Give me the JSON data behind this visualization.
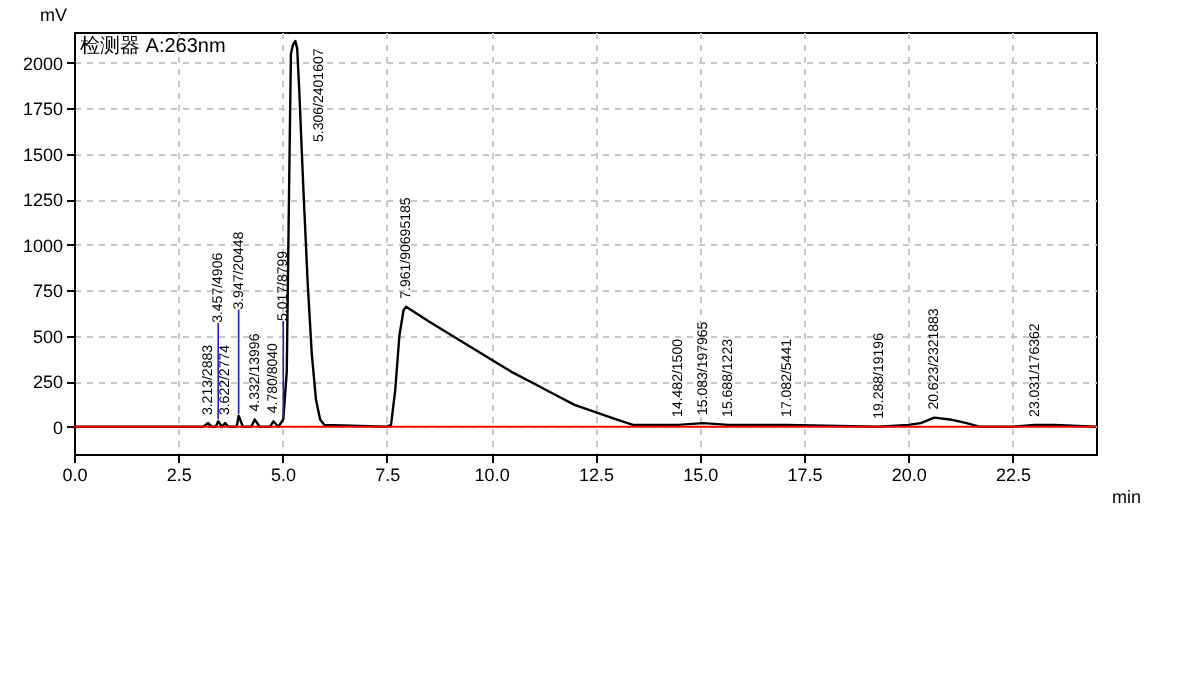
{
  "chart_data": {
    "type": "line",
    "title": "检测器 A:263nm",
    "xlabel": "min",
    "ylabel": "mV",
    "x": [
      0,
      2.9,
      3.1,
      3.213,
      3.3,
      3.4,
      3.457,
      3.55,
      3.622,
      3.7,
      3.9,
      3.947,
      4.05,
      4.25,
      4.332,
      4.45,
      4.7,
      4.78,
      4.9,
      5.017,
      5.1,
      5.15,
      5.2,
      5.25,
      5.306,
      5.35,
      5.4,
      5.5,
      5.6,
      5.7,
      5.8,
      5.9,
      6.0,
      7.5,
      7.6,
      7.7,
      7.8,
      7.9,
      7.961,
      8.5,
      9.0,
      9.5,
      10.0,
      10.5,
      11.0,
      11.5,
      12.0,
      12.5,
      13.0,
      13.4,
      14.0,
      14.482,
      15.083,
      15.688,
      16.2,
      17.082,
      19.288,
      20.0,
      20.3,
      20.623,
      21.0,
      21.4,
      21.7,
      22.5,
      23.031,
      23.5,
      24.5
    ],
    "series": [
      {
        "color": "#000000",
        "values": [
          0,
          0,
          0,
          20,
          0,
          0,
          30,
          0,
          20,
          0,
          0,
          60,
          0,
          0,
          40,
          0,
          0,
          30,
          0,
          40,
          300,
          1200,
          2050,
          2100,
          2120,
          2080,
          1850,
          1300,
          800,
          400,
          150,
          40,
          10,
          0,
          10,
          200,
          500,
          640,
          660,
          580,
          510,
          440,
          370,
          300,
          240,
          180,
          120,
          80,
          40,
          10,
          10,
          10,
          20,
          10,
          10,
          10,
          0,
          10,
          20,
          50,
          40,
          20,
          0,
          0,
          10,
          10,
          0
        ]
      }
    ],
    "annotations": [
      {
        "text": "3.213/2883",
        "x": 3.213,
        "y": 20
      },
      {
        "text": "3.457/4906",
        "x": 3.457,
        "y": 30
      },
      {
        "text": "3.622/2774",
        "x": 3.622,
        "y": 20
      },
      {
        "text": "3.947/20448",
        "x": 3.947,
        "y": 60
      },
      {
        "text": "4.332/13996",
        "x": 4.332,
        "y": 40
      },
      {
        "text": "4.780/8040",
        "x": 4.78,
        "y": 30
      },
      {
        "text": "5.017/8799",
        "x": 5.017,
        "y": 40
      },
      {
        "text": "5.306/2401607",
        "x": 5.306,
        "y": 2120
      },
      {
        "text": "7.961/90695185",
        "x": 7.961,
        "y": 660
      },
      {
        "text": "14.482/1500",
        "x": 14.482,
        "y": 10
      },
      {
        "text": "15.083/197965",
        "x": 15.083,
        "y": 20
      },
      {
        "text": "15.688/1223",
        "x": 15.688,
        "y": 10
      },
      {
        "text": "17.082/5441",
        "x": 17.082,
        "y": 10
      },
      {
        "text": "19.288/19196",
        "x": 19.288,
        "y": 0
      },
      {
        "text": "20.623/2321883",
        "x": 20.623,
        "y": 50
      },
      {
        "text": "23.031/176362",
        "x": 23.031,
        "y": 10
      }
    ],
    "ref_lines": [
      {
        "axis": "y",
        "value": 0,
        "color": "#ff0000"
      }
    ],
    "xlim": [
      0,
      24.5
    ],
    "xticks": [
      {
        "value": 0,
        "label": "0.0"
      },
      {
        "value": 2.5,
        "label": "2.5"
      },
      {
        "value": 5,
        "label": "5.0"
      },
      {
        "value": 7.5,
        "label": "7.5"
      },
      {
        "value": 10,
        "label": "10.0"
      },
      {
        "value": 12.5,
        "label": "12.5"
      },
      {
        "value": 15,
        "label": "15.0"
      },
      {
        "value": 17.5,
        "label": "17.5"
      },
      {
        "value": 20,
        "label": "20.0"
      },
      {
        "value": 22.5,
        "label": "22.5"
      }
    ],
    "ylim": [
      -150,
      2170
    ],
    "yticks": [
      0,
      250,
      500,
      750,
      1000,
      1250,
      1500,
      1750,
      2000
    ],
    "grid": true
  }
}
